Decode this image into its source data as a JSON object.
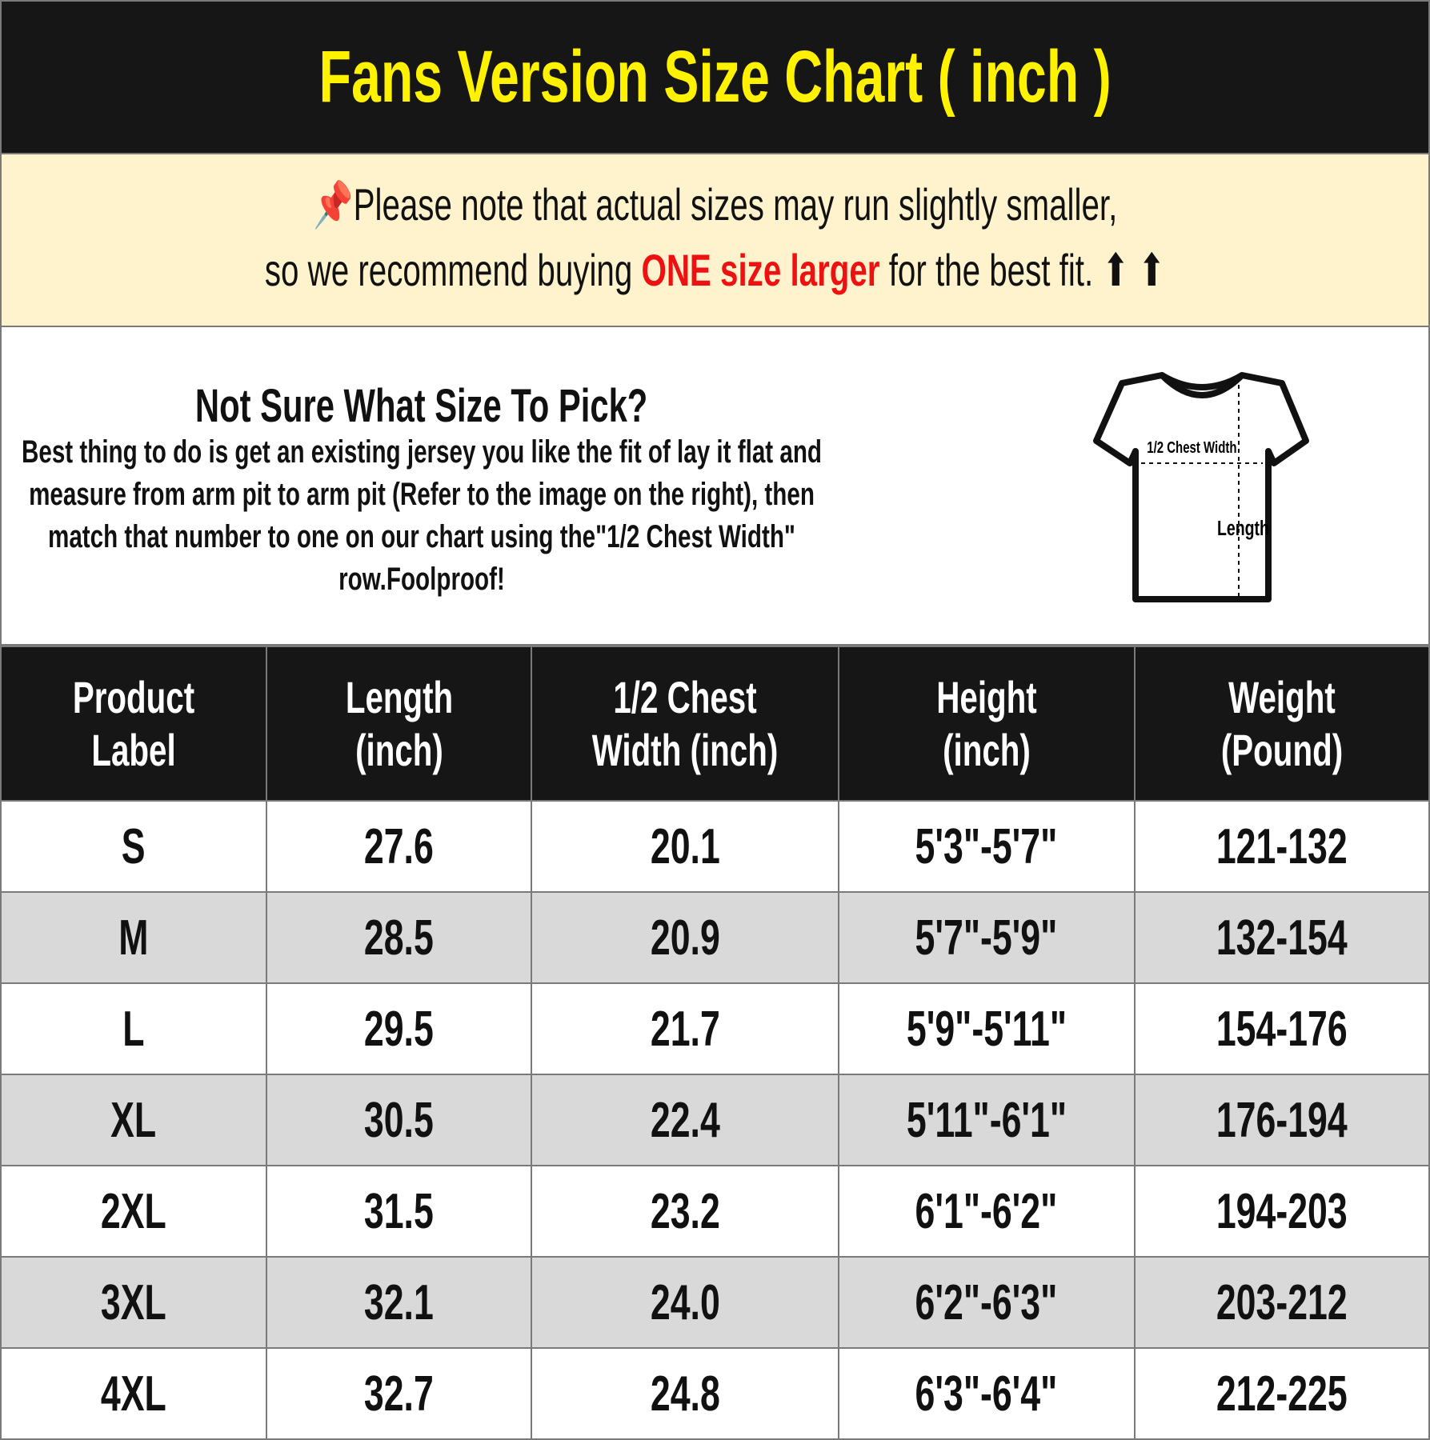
{
  "title": "Fans Version Size Chart ( inch )",
  "notice": {
    "icon": "pushpin-icon",
    "line1": "Please note that actual sizes may run slightly smaller,",
    "line2_pre": "so we recommend buying ",
    "line2_highlight": "ONE size larger",
    "line2_post": " for the best fit.",
    "arrows": "⬆ ⬆",
    "highlight_color": "#ee1111"
  },
  "info": {
    "heading": "Not Sure What Size To Pick?",
    "body": "Best thing to do is get an existing jersey you like the fit of lay it flat and measure from arm pit to arm pit (Refer to the image on the right), then match that number to one on our chart using the\"1/2 Chest Width\" row.Foolproof!",
    "diagram": {
      "chest_label": "1/2 Chest Width",
      "length_label": "Length"
    }
  },
  "table": {
    "headers": [
      "Product Label",
      "Length (inch)",
      "1/2 Chest Width (inch)",
      "Height (inch)",
      "Weight (Pound)"
    ],
    "rows": [
      [
        "S",
        "27.6",
        "20.1",
        "5'3\"-5'7\"",
        "121-132"
      ],
      [
        "M",
        "28.5",
        "20.9",
        "5'7\"-5'9\"",
        "132-154"
      ],
      [
        "L",
        "29.5",
        "21.7",
        "5'9\"-5'11\"",
        "154-176"
      ],
      [
        "XL",
        "30.5",
        "22.4",
        "5'11\"-6'1\"",
        "176-194"
      ],
      [
        "2XL",
        "31.5",
        "23.2",
        "6'1\"-6'2\"",
        "194-203"
      ],
      [
        "3XL",
        "32.1",
        "24.0",
        "6'2\"-6'3\"",
        "203-212"
      ],
      [
        "4XL",
        "32.7",
        "24.8",
        "6'3\"-6'4\"",
        "212-225"
      ]
    ]
  },
  "colors": {
    "title": "#fff200",
    "header_bg": "#161616",
    "notice_bg": "#fef3cd",
    "alt_row": "#d9d9d9"
  }
}
